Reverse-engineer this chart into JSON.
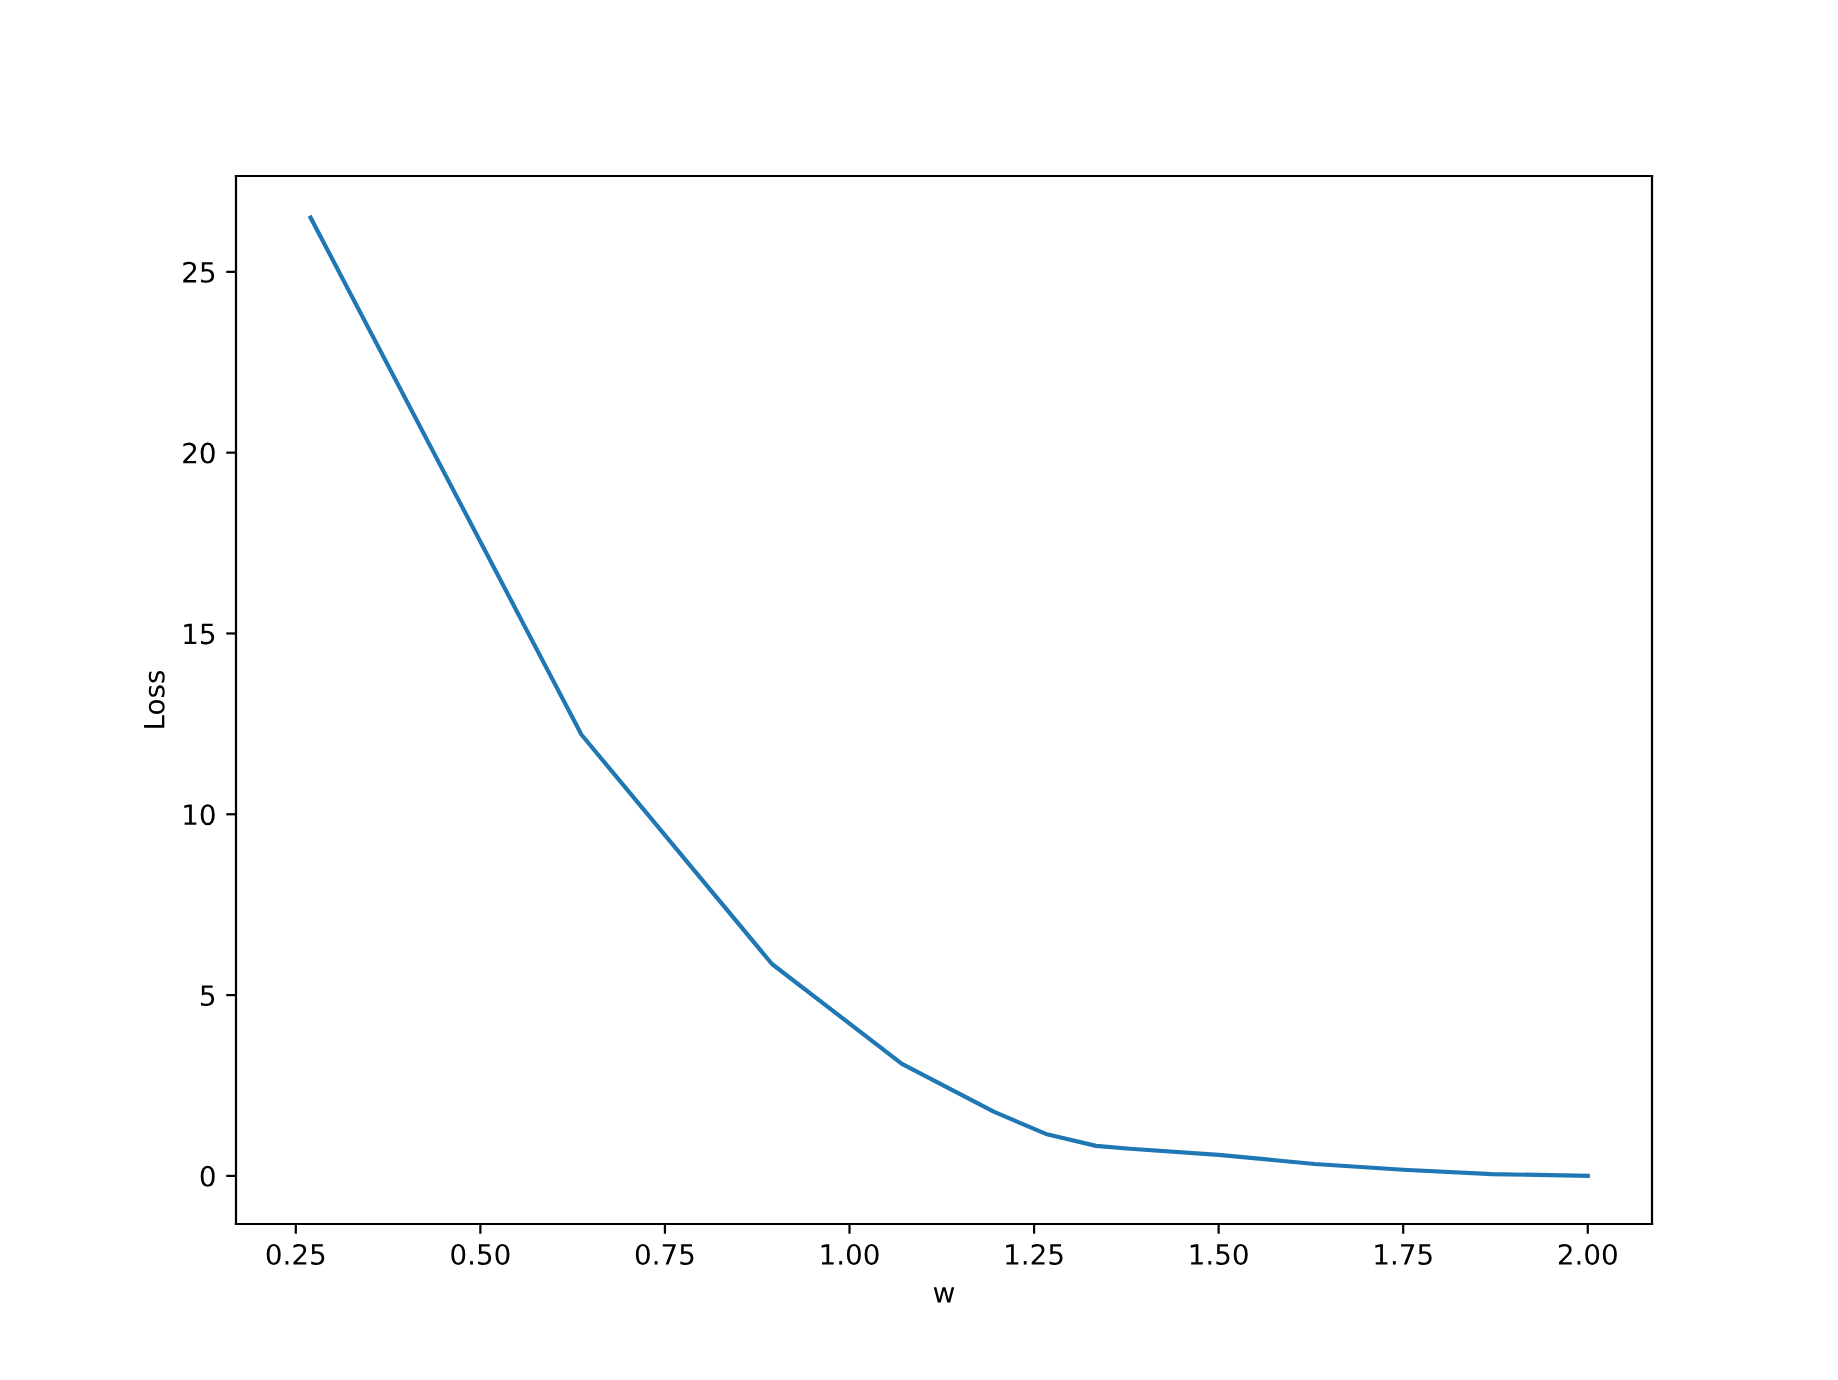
{
  "chart_data": {
    "type": "line",
    "xlabel": "w",
    "ylabel": "Loss",
    "series": [
      {
        "color": "#1f77b4",
        "x": [
          0.27,
          0.637,
          0.895,
          1.071,
          1.196,
          1.266,
          1.334,
          1.38,
          1.5,
          1.63,
          1.75,
          1.87,
          2.0
        ],
        "values": [
          26.5,
          12.2,
          5.86,
          3.1,
          1.77,
          1.16,
          0.83,
          0.75,
          0.58,
          0.33,
          0.17,
          0.05,
          0.0
        ]
      }
    ],
    "xlim": [
      0.169,
      2.087
    ],
    "ylim": [
      -1.33,
      27.65
    ],
    "xticks": [
      {
        "value": 0.25,
        "label": "0.25"
      },
      {
        "value": 0.5,
        "label": "0.50"
      },
      {
        "value": 0.75,
        "label": "0.75"
      },
      {
        "value": 1.0,
        "label": "1.00"
      },
      {
        "value": 1.25,
        "label": "1.25"
      },
      {
        "value": 1.5,
        "label": "1.50"
      },
      {
        "value": 1.75,
        "label": "1.75"
      },
      {
        "value": 2.0,
        "label": "2.00"
      }
    ],
    "yticks": [
      0,
      5,
      10,
      15,
      20,
      25
    ],
    "grid": false,
    "legend": false
  }
}
